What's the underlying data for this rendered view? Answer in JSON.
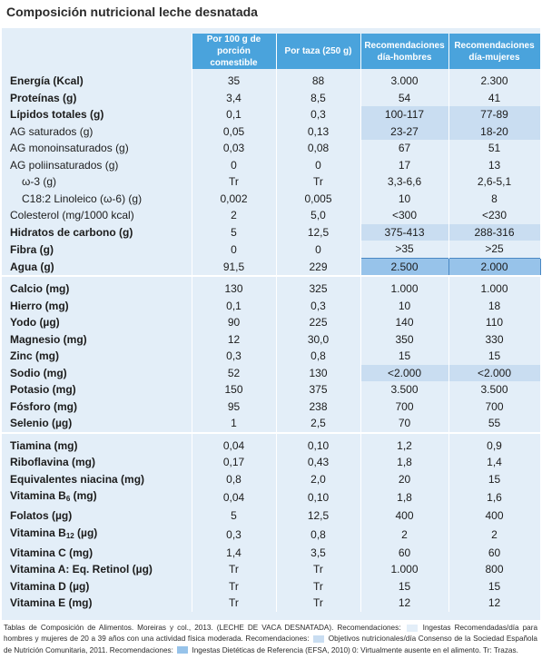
{
  "title": "Composición nutricional leche desnatada",
  "headers": [
    "Por 100 g de porción comestible",
    "Por taza (250 g)",
    "Recomendaciones día-hombres",
    "Recomendaciones día-mujeres"
  ],
  "groups": [
    {
      "rows": [
        {
          "label": "Energía (Kcal)",
          "bold": true,
          "values": [
            "35",
            "88",
            "3.000",
            "2.300"
          ],
          "hl": ""
        },
        {
          "label": "Proteínas (g)",
          "bold": true,
          "values": [
            "3,4",
            "8,5",
            "54",
            "41"
          ],
          "hl": ""
        },
        {
          "label": "Lípidos totales (g)",
          "bold": true,
          "values": [
            "0,1",
            "0,3",
            "100-117",
            "77-89"
          ],
          "hl": "light"
        },
        {
          "label": "AG saturados (g)",
          "bold": false,
          "values": [
            "0,05",
            "0,13",
            "23-27",
            "18-20"
          ],
          "hl": "light"
        },
        {
          "label": "AG monoinsaturados (g)",
          "bold": false,
          "values": [
            "0,03",
            "0,08",
            "67",
            "51"
          ],
          "hl": ""
        },
        {
          "label": "AG poliinsaturados (g)",
          "bold": false,
          "values": [
            "0",
            "0",
            "17",
            "13"
          ],
          "hl": ""
        },
        {
          "label": "ω-3 (g)",
          "bold": false,
          "indent": true,
          "values": [
            "Tr",
            "Tr",
            "3,3-6,6",
            "2,6-5,1"
          ],
          "hl": ""
        },
        {
          "label": "C18:2 Linoleico (ω-6) (g)",
          "bold": false,
          "indent": true,
          "values": [
            "0,002",
            "0,005",
            "10",
            "8"
          ],
          "hl": ""
        },
        {
          "label": "Colesterol (mg/1000 kcal)",
          "bold": false,
          "values": [
            "2",
            "5,0",
            "<300",
            "<230"
          ],
          "hl": ""
        },
        {
          "label": "Hidratos de carbono (g)",
          "bold": true,
          "values": [
            "5",
            "12,5",
            "375-413",
            "288-316"
          ],
          "hl": "light"
        },
        {
          "label": "Fibra (g)",
          "bold": true,
          "values": [
            "0",
            "0",
            ">35",
            ">25"
          ],
          "hl": ""
        },
        {
          "label": "Agua (g)",
          "bold": true,
          "values": [
            "91,5",
            "229",
            "2.500",
            "2.000"
          ],
          "hl": "dark"
        }
      ]
    },
    {
      "rows": [
        {
          "label": "Calcio (mg)",
          "bold": true,
          "values": [
            "130",
            "325",
            "1.000",
            "1.000"
          ],
          "hl": ""
        },
        {
          "label": "Hierro (mg)",
          "bold": true,
          "values": [
            "0,1",
            "0,3",
            "10",
            "18"
          ],
          "hl": ""
        },
        {
          "label": "Yodo (µg)",
          "bold": true,
          "values": [
            "90",
            "225",
            "140",
            "110"
          ],
          "hl": ""
        },
        {
          "label": "Magnesio (mg)",
          "bold": true,
          "values": [
            "12",
            "30,0",
            "350",
            "330"
          ],
          "hl": ""
        },
        {
          "label": "Zinc (mg)",
          "bold": true,
          "values": [
            "0,3",
            "0,8",
            "15",
            "15"
          ],
          "hl": ""
        },
        {
          "label": "Sodio (mg)",
          "bold": true,
          "values": [
            "52",
            "130",
            "<2.000",
            "<2.000"
          ],
          "hl": "light"
        },
        {
          "label": "Potasio (mg)",
          "bold": true,
          "values": [
            "150",
            "375",
            "3.500",
            "3.500"
          ],
          "hl": ""
        },
        {
          "label": "Fósforo (mg)",
          "bold": true,
          "values": [
            "95",
            "238",
            "700",
            "700"
          ],
          "hl": ""
        },
        {
          "label": "Selenio (µg)",
          "bold": true,
          "values": [
            "1",
            "2,5",
            "70",
            "55"
          ],
          "hl": ""
        }
      ]
    },
    {
      "rows": [
        {
          "label": "Tiamina (mg)",
          "bold": true,
          "values": [
            "0,04",
            "0,10",
            "1,2",
            "0,9"
          ],
          "hl": ""
        },
        {
          "label": "Riboflavina (mg)",
          "bold": true,
          "values": [
            "0,17",
            "0,43",
            "1,8",
            "1,4"
          ],
          "hl": ""
        },
        {
          "label": "Equivalentes niacina (mg)",
          "bold": true,
          "values": [
            "0,8",
            "2,0",
            "20",
            "15"
          ],
          "hl": ""
        },
        {
          "label": "Vitamina B",
          "sub": "6",
          "after": " (mg)",
          "bold": true,
          "values": [
            "0,04",
            "0,10",
            "1,8",
            "1,6"
          ],
          "hl": ""
        },
        {
          "label": "Folatos (µg)",
          "bold": true,
          "values": [
            "5",
            "12,5",
            "400",
            "400"
          ],
          "hl": ""
        },
        {
          "label": "Vitamina B",
          "sub": "12",
          "after": " (µg)",
          "bold": true,
          "values": [
            "0,3",
            "0,8",
            "2",
            "2"
          ],
          "hl": ""
        },
        {
          "label": "Vitamina C (mg)",
          "bold": true,
          "values": [
            "1,4",
            "3,5",
            "60",
            "60"
          ],
          "hl": ""
        },
        {
          "label": "Vitamina A: Eq. Retinol (µg)",
          "bold": true,
          "values": [
            "Tr",
            "Tr",
            "1.000",
            "800"
          ],
          "hl": ""
        },
        {
          "label": "Vitamina D (µg)",
          "bold": true,
          "values": [
            "Tr",
            "Tr",
            "15",
            "15"
          ],
          "hl": ""
        },
        {
          "label": "Vitamina E (mg)",
          "bold": true,
          "values": [
            "Tr",
            "Tr",
            "12",
            "12"
          ],
          "hl": ""
        }
      ]
    }
  ],
  "footnote": {
    "part1": "Tablas de Composición de Alimentos. Moreiras y col., 2013. (LECHE DE VACA DESNATADA). Recomendaciones:",
    "legend1": "Ingestas Recomendadas/día para hombres y mujeres de 20 a 39 años con una actividad física moderada. Recomendaciones:",
    "legend2": "Objetivos nutricionales/día Consenso de la Sociedad Española de Nutrición Comunitaria, 2011. Recomendaciones:",
    "legend3": "Ingestas Dietéticas de Referencia (EFSA, 2010) 0: Virtualmente ausente en el alimento. Tr: Trazas."
  },
  "colors": {
    "header": "#4aa3dc",
    "panel": "#e3eef8",
    "highlight_light": "#c9ddf1",
    "highlight_dark": "#97c3ea"
  }
}
